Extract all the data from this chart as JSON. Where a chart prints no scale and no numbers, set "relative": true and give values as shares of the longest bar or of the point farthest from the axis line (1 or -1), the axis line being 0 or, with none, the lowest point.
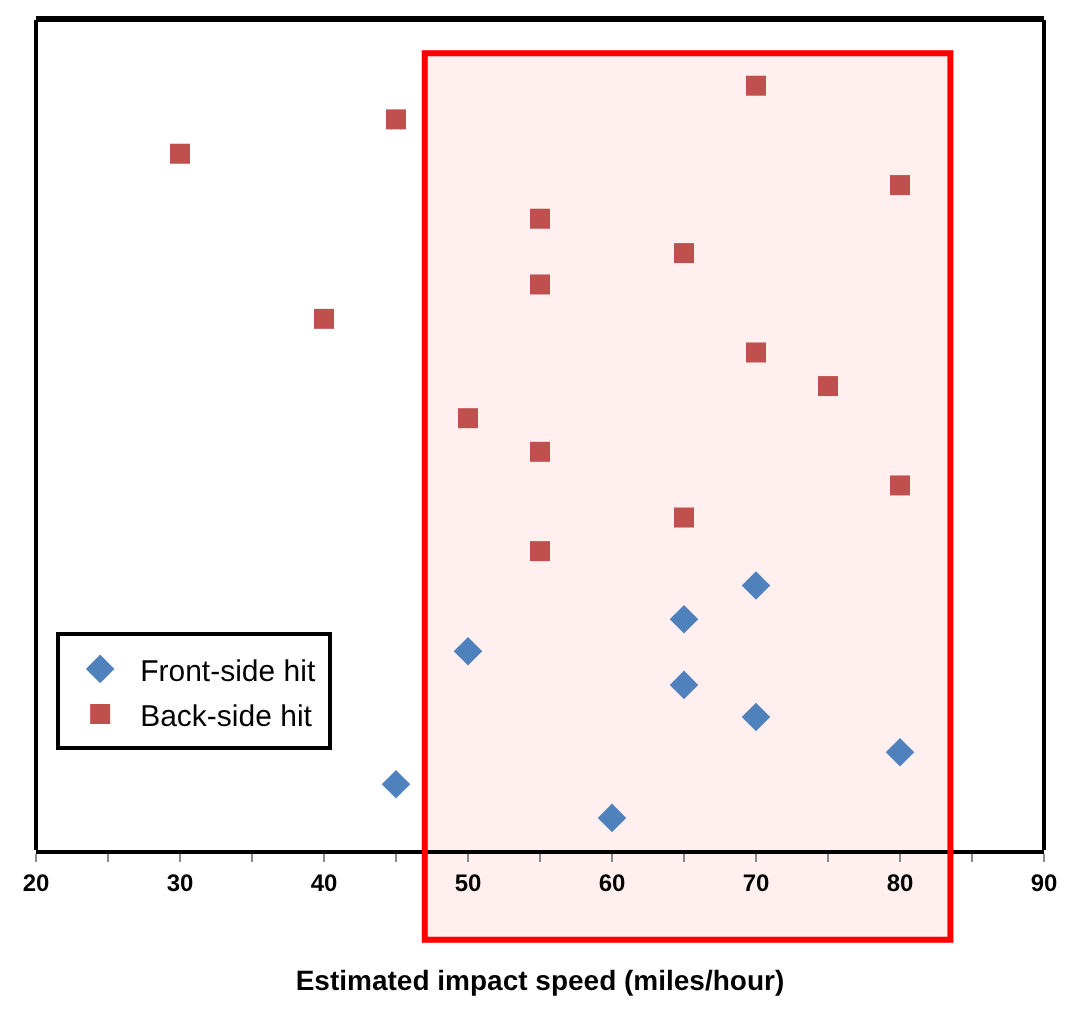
{
  "chart_data": {
    "type": "scatter",
    "xlabel": "Estimated impact speed (miles/hour)",
    "relative": true,
    "legend": "bottom left",
    "grid": false,
    "xlim": [
      20,
      90
    ],
    "xticks": [
      20,
      {
        "value": 25,
        "label": null
      },
      30,
      {
        "value": 35,
        "label": null
      },
      40,
      {
        "value": 45,
        "label": null
      },
      50,
      {
        "value": 55,
        "label": null
      },
      60,
      {
        "value": 65,
        "label": null
      },
      70,
      {
        "value": 75,
        "label": null
      },
      80,
      {
        "value": 85,
        "label": null
      },
      90
    ],
    "series": [
      {
        "name": "Front-side hit",
        "color": "#4f81bd",
        "marker": "diamond",
        "x": [
          45,
          50,
          60,
          65,
          65,
          70,
          70,
          80
        ],
        "values": [
          0.086,
          0.26,
          0.042,
          0.302,
          0.216,
          0.346,
          0.174,
          0.128
        ]
      },
      {
        "name": "Back-side hit",
        "color": "#c0504d",
        "marker": "square",
        "x": [
          30,
          40,
          45,
          50,
          55,
          55,
          55,
          55,
          65,
          65,
          70,
          70,
          75,
          80,
          80
        ],
        "values": [
          0.911,
          0.695,
          0.956,
          0.565,
          0.826,
          0.74,
          0.521,
          0.391,
          0.781,
          0.435,
          1.0,
          0.651,
          0.607,
          0.87,
          0.477
        ]
      }
    ],
    "bands": [
      {
        "axis": "x",
        "from": 47,
        "to": 83.5,
        "color": "#ff0000"
      }
    ]
  }
}
